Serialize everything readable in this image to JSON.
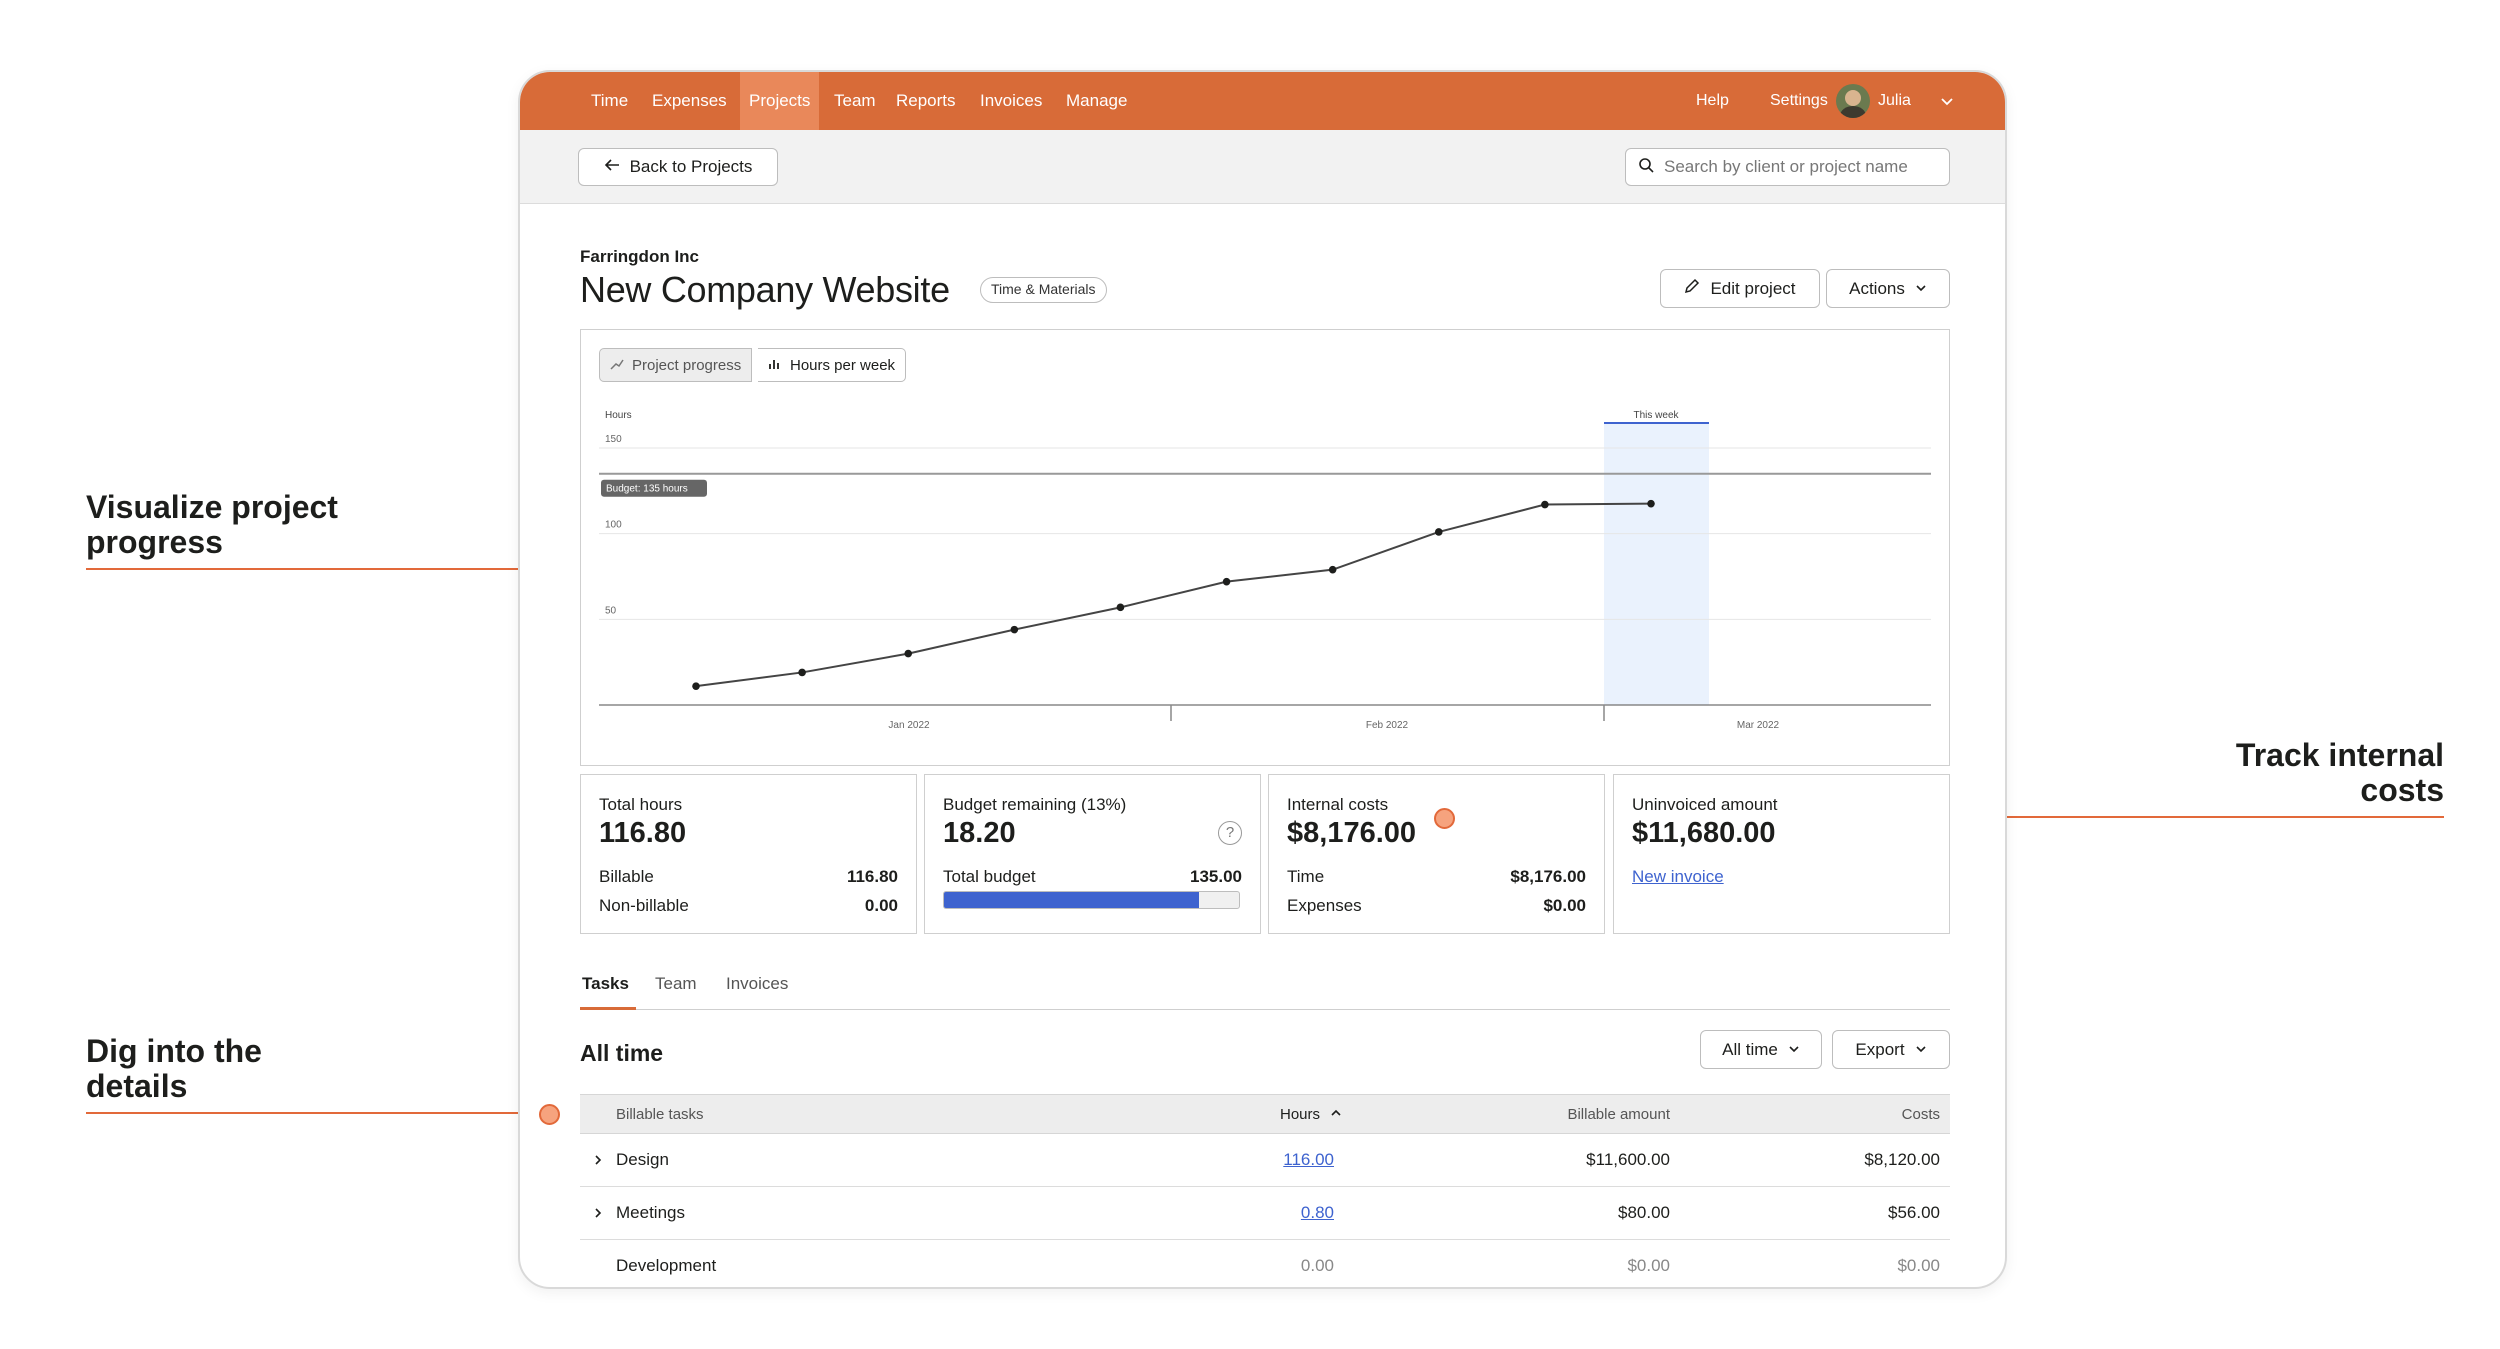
{
  "annotations": {
    "visualize": "Visualize project\nprogress",
    "track": "Track internal\ncosts",
    "dig": "Dig into the\ndetails"
  },
  "colors": {
    "brand": "#d86b38",
    "accent_blue": "#3e63cf",
    "annotation": "#e2693a"
  },
  "nav": {
    "items": [
      "Time",
      "Expenses",
      "Projects",
      "Team",
      "Reports",
      "Invoices",
      "Manage"
    ],
    "active": "Projects",
    "help": "Help",
    "settings": "Settings",
    "user": "Julia"
  },
  "subbar": {
    "back_label": "Back to Projects",
    "search_placeholder": "Search by client or project name"
  },
  "project": {
    "client": "Farringdon Inc",
    "name": "New Company Website",
    "badge": "Time & Materials",
    "edit_label": "Edit project",
    "actions_label": "Actions"
  },
  "chart_toggle": {
    "progress": "Project progress",
    "hours_week": "Hours per week"
  },
  "chart_data": {
    "type": "line",
    "ylabel": "Hours",
    "ylim": [
      0,
      150
    ],
    "yticks": [
      50,
      100,
      150
    ],
    "x_tick_labels": [
      "Jan 2022",
      "Feb 2022",
      "Mar 2022"
    ],
    "budget_line": {
      "value": 135,
      "label": "Budget: 135 hours"
    },
    "highlight_label": "This week",
    "series": [
      {
        "values": [
          11,
          19,
          30,
          44,
          57,
          72,
          79,
          101,
          117,
          117.5
        ]
      }
    ]
  },
  "cards": {
    "total_hours": {
      "label": "Total hours",
      "value": "116.80",
      "billable_label": "Billable",
      "billable_value": "116.80",
      "nonbillable_label": "Non-billable",
      "nonbillable_value": "0.00"
    },
    "budget": {
      "label": "Budget remaining (13%)",
      "value": "18.20",
      "help": "?",
      "total_label": "Total budget",
      "total_value": "135.00",
      "used_fraction": 0.865
    },
    "internal": {
      "label": "Internal costs",
      "value": "$8,176.00",
      "time_label": "Time",
      "time_value": "$8,176.00",
      "expenses_label": "Expenses",
      "expenses_value": "$0.00"
    },
    "uninvoiced": {
      "label": "Uninvoiced amount",
      "value": "$11,680.00",
      "link": "New invoice"
    }
  },
  "tabs": [
    "Tasks",
    "Team",
    "Invoices"
  ],
  "section": {
    "title": "All time",
    "filter": "All time",
    "export": "Export"
  },
  "table": {
    "headers": {
      "task": "Billable tasks",
      "hours": "Hours",
      "amount": "Billable amount",
      "costs": "Costs"
    },
    "rows": [
      {
        "task": "Design",
        "hours": "116.00",
        "amount": "$11,600.00",
        "costs": "$8,120.00"
      },
      {
        "task": "Meetings",
        "hours": "0.80",
        "amount": "$80.00",
        "costs": "$56.00"
      },
      {
        "task": "Development",
        "hours": "0.00",
        "amount": "$0.00",
        "costs": "$0.00"
      }
    ]
  }
}
